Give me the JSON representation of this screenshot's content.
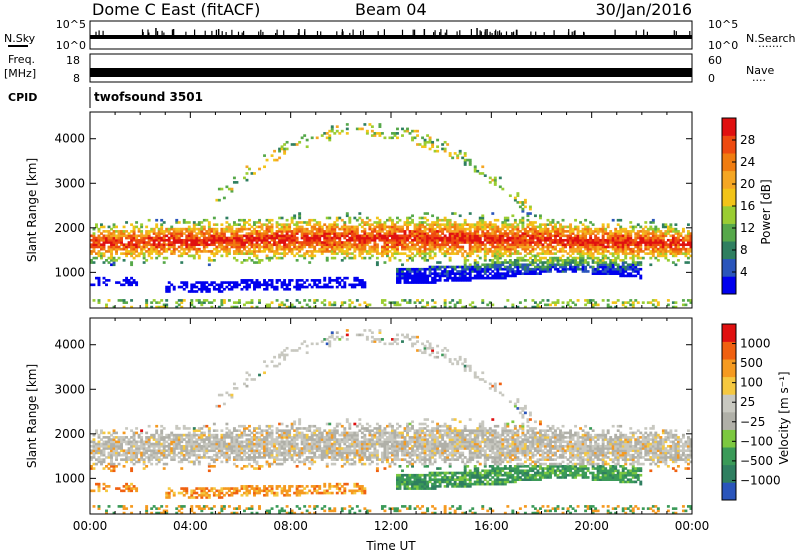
{
  "header": {
    "station": "Dome C East (fitACF)",
    "beam": "Beam 04",
    "date": "30/Jan/2016"
  },
  "panels": {
    "nsky": {
      "left_label": "N.Sky",
      "right_label": "N.Search",
      "left_ticks": [
        "10^5",
        "10^0"
      ],
      "right_ticks": [
        "10^5",
        "10^0"
      ]
    },
    "freq": {
      "left_label": "Freq.",
      "left_unit": "[MHz]",
      "left_ticks": [
        "18",
        "8"
      ],
      "right_label": "Nave",
      "right_ticks": [
        "60",
        "0"
      ]
    },
    "cpid": {
      "label": "CPID",
      "value": "twofsound 3501"
    }
  },
  "colors": {
    "power": [
      "#0000ee",
      "#2a55bb",
      "#2f7f60",
      "#56a84a",
      "#9acd32",
      "#f2c418",
      "#f5a623",
      "#f07c10",
      "#ee4a10",
      "#e01010"
    ],
    "velocity": [
      "#e01010",
      "#f06010",
      "#f59a20",
      "#f5c840",
      "#c8c8c0",
      "#b0b0a8",
      "#7cc840",
      "#3a9a58",
      "#2f7f60",
      "#2a55bb"
    ]
  },
  "chart_data": [
    {
      "type": "heatmap",
      "title": "",
      "ylabel": "Slant Range [km]",
      "xlabel": "",
      "x_ticks": [
        "00:00",
        "04:00",
        "08:00",
        "12:00",
        "16:00",
        "20:00",
        "00:00"
      ],
      "y_ticks": [
        1000,
        2000,
        3000,
        4000
      ],
      "ylim": [
        200,
        4600
      ],
      "colorbar": {
        "label": "Power [dB]",
        "ticks": [
          "28",
          "24",
          "20",
          "16",
          "12",
          "8",
          "4"
        ],
        "range": [
          0,
          32
        ]
      }
    },
    {
      "type": "heatmap",
      "title": "",
      "ylabel": "Slant Range [km]",
      "xlabel": "Time UT",
      "x_ticks": [
        "00:00",
        "04:00",
        "08:00",
        "12:00",
        "16:00",
        "20:00",
        "00:00"
      ],
      "y_ticks": [
        1000,
        2000,
        3000,
        4000
      ],
      "ylim": [
        200,
        4600
      ],
      "colorbar": {
        "label": "Velocity [m s⁻¹]",
        "ticks": [
          "1000",
          "500",
          "100",
          "25",
          "−25",
          "−100",
          "−500",
          "−1000"
        ]
      }
    }
  ]
}
